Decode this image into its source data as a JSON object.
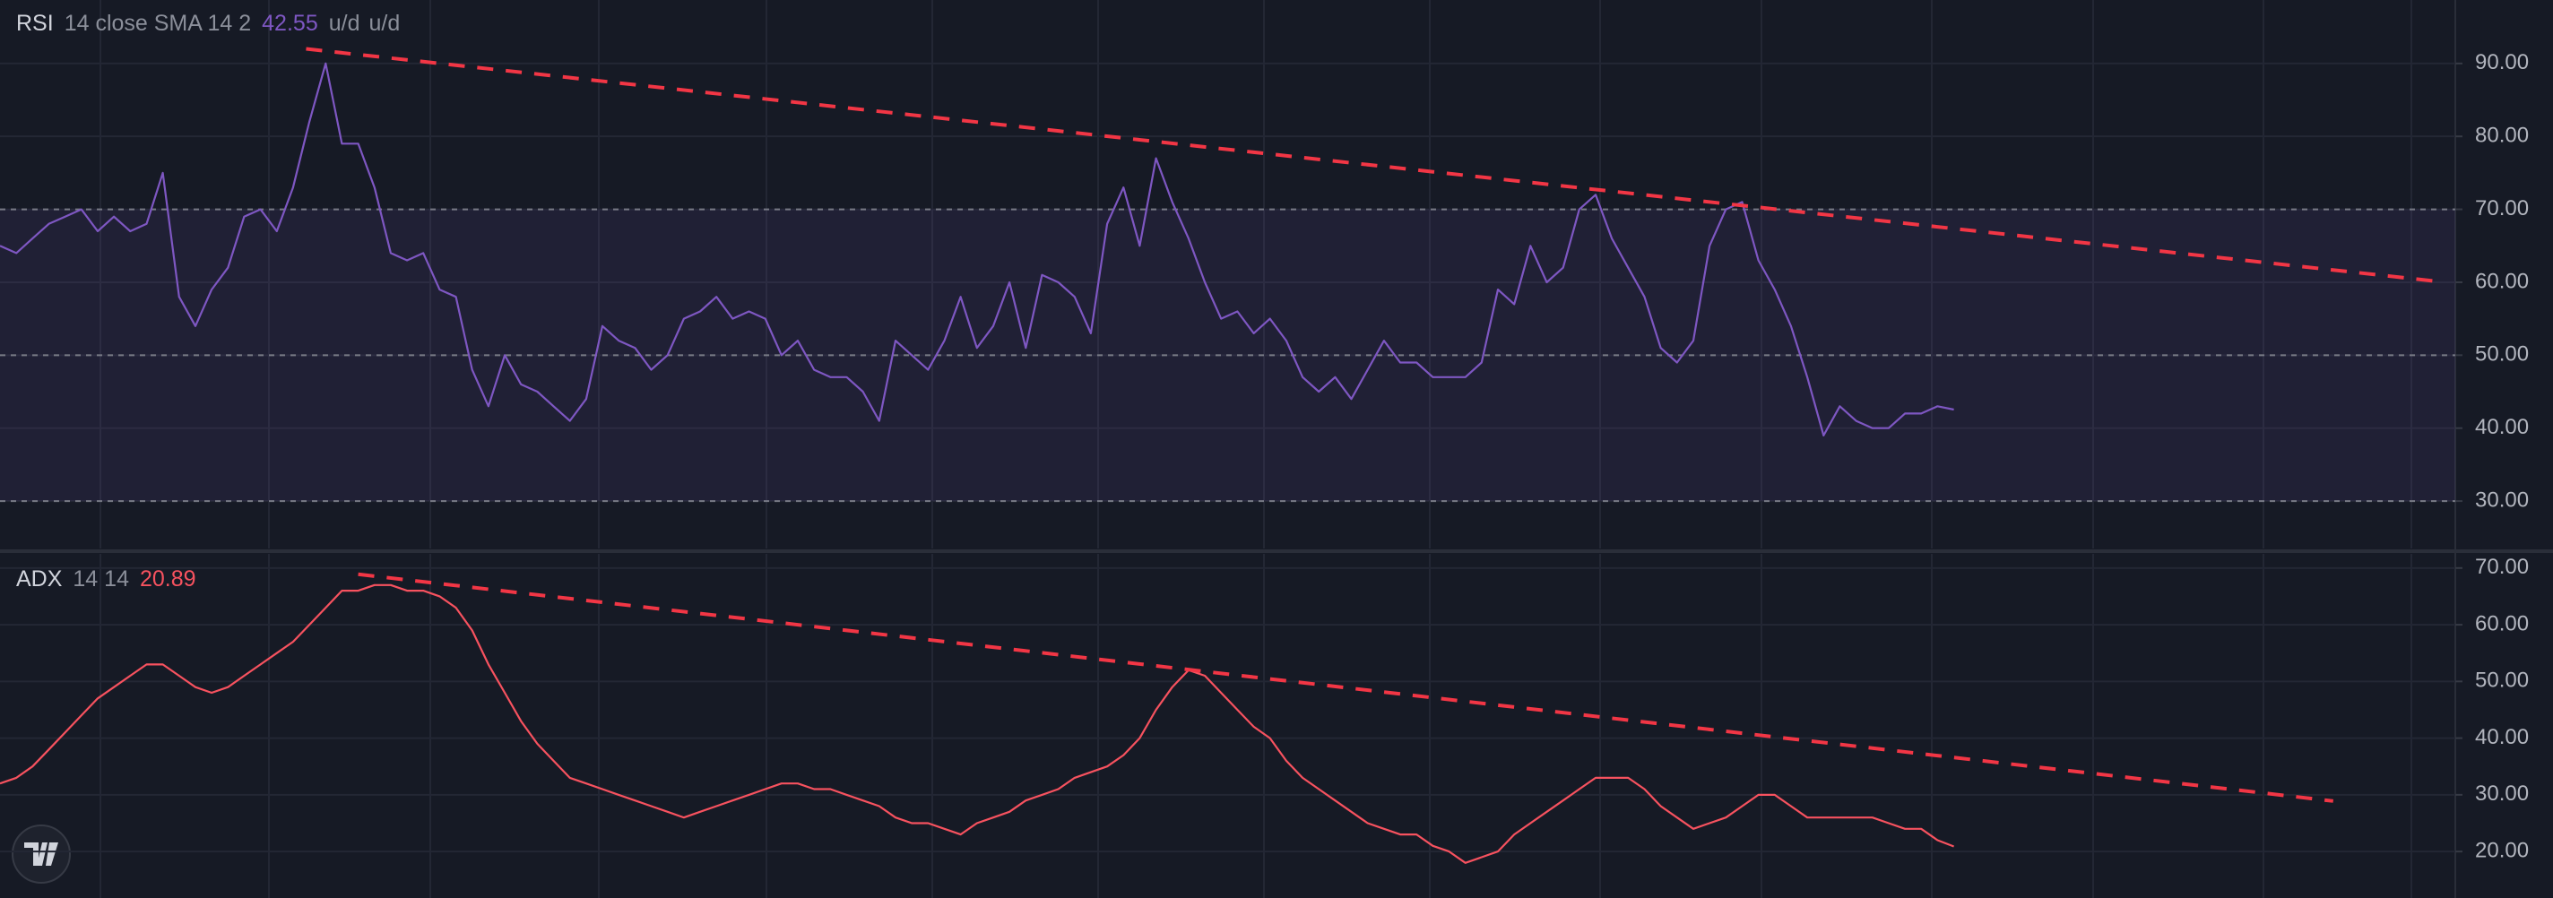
{
  "chart_data": [
    {
      "type": "line",
      "title": "RSI",
      "params": "14 close SMA 14 2",
      "units": [
        "u/d",
        "u/d"
      ],
      "xlim": [
        0,
        150.8
      ],
      "ylim": [
        23.5,
        98.7
      ],
      "yticks": [
        {
          "value": 30,
          "label": "30.00"
        },
        {
          "value": 40,
          "label": "40.00"
        },
        {
          "value": 50,
          "label": "50.00"
        },
        {
          "value": 60,
          "label": "60.00"
        },
        {
          "value": 70,
          "label": "70.00"
        },
        {
          "value": 80,
          "label": "80.00"
        },
        {
          "value": 90,
          "label": "90.00"
        }
      ],
      "bands": {
        "upper": 70,
        "middle": 50,
        "lower": 30,
        "color": "#7e57c2"
      },
      "series": [
        {
          "name": "RSI",
          "color": "#7e57c2",
          "values": [
            65,
            64,
            66,
            68,
            69,
            70,
            67,
            69,
            67,
            68,
            75,
            58,
            54,
            59,
            62,
            69,
            70,
            67,
            73,
            82,
            90,
            79,
            79,
            73,
            64,
            63,
            64,
            59,
            58,
            48,
            43,
            50,
            46,
            45,
            43,
            41,
            44,
            54,
            52,
            51,
            48,
            50,
            55,
            56,
            58,
            55,
            56,
            55,
            50,
            52,
            48,
            47,
            47,
            45,
            41,
            52,
            50,
            48,
            52,
            58,
            51,
            54,
            60,
            51,
            61,
            60,
            58,
            53,
            68,
            73,
            65,
            77,
            71,
            66,
            60,
            55,
            56,
            53,
            55,
            52,
            47,
            45,
            47,
            44,
            48,
            52,
            49,
            49,
            47,
            47,
            47,
            49,
            59,
            57,
            65,
            60,
            62,
            70,
            72,
            66,
            62,
            58,
            51,
            49,
            52,
            65,
            70,
            71,
            63,
            59,
            54,
            47,
            39,
            43,
            41,
            40,
            40,
            42,
            42,
            43,
            42.55
          ]
        }
      ],
      "trendlines": [
        {
          "color": "#f23645",
          "x": [
            18.8,
            149.8
          ],
          "values": [
            92,
            60.1
          ]
        }
      ]
    },
    {
      "type": "line",
      "title": "ADX",
      "params": "14 14",
      "xlim": [
        0,
        150.8
      ],
      "ylim": [
        11.8,
        72.5
      ],
      "yticks": [
        {
          "value": 20,
          "label": "20.00"
        },
        {
          "value": 30,
          "label": "30.00"
        },
        {
          "value": 40,
          "label": "40.00"
        },
        {
          "value": 50,
          "label": "50.00"
        },
        {
          "value": 60,
          "label": "60.00"
        },
        {
          "value": 70,
          "label": "70.00"
        }
      ],
      "series": [
        {
          "name": "ADX",
          "color": "#f7525f",
          "values": [
            32,
            33,
            35,
            38,
            41,
            44,
            47,
            49,
            51,
            53,
            53,
            51,
            49,
            48,
            49,
            51,
            53,
            55,
            57,
            60,
            63,
            66,
            66,
            67,
            67,
            66,
            66,
            65,
            63,
            59,
            53,
            48,
            43,
            39,
            36,
            33,
            32,
            31,
            30,
            29,
            28,
            27,
            26,
            27,
            28,
            29,
            30,
            31,
            32,
            32,
            31,
            31,
            30,
            29,
            28,
            26,
            25,
            25,
            24,
            23,
            25,
            26,
            27,
            29,
            30,
            31,
            33,
            34,
            35,
            37,
            40,
            45,
            49,
            52,
            51,
            48,
            45,
            42,
            40,
            36,
            33,
            31,
            29,
            27,
            25,
            24,
            23,
            23,
            21,
            20,
            18,
            19,
            20,
            23,
            25,
            27,
            29,
            31,
            33,
            33,
            33,
            31,
            28,
            26,
            24,
            25,
            26,
            28,
            30,
            30,
            28,
            26,
            26,
            26,
            26,
            26,
            25,
            24,
            24,
            22,
            20.89
          ]
        }
      ],
      "trendlines": [
        {
          "color": "#f23645",
          "x": [
            22,
            143.3
          ],
          "values": [
            68.9,
            28.9
          ]
        }
      ]
    }
  ]
}
